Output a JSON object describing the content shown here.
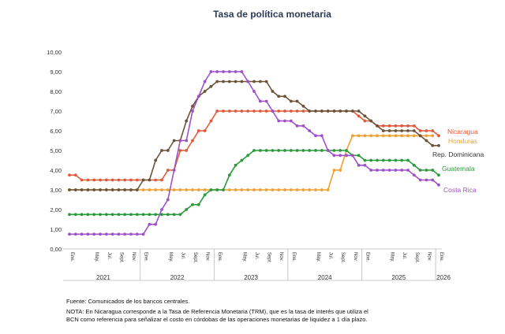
{
  "chart_data": {
    "type": "line",
    "title": "Tasa de política monetaria",
    "ylim": [
      0,
      10
    ],
    "yticks": [
      "0,00",
      "1,00",
      "2,00",
      "3,00",
      "4,00",
      "5,00",
      "6,00",
      "7,00",
      "8,00",
      "9,00",
      "10,00"
    ],
    "years": [
      "2021",
      "2022",
      "2023",
      "2024",
      "2025",
      "2026"
    ],
    "month_labels": [
      "Ene.",
      "May.",
      "Jul.",
      "Sept.",
      "Nov."
    ],
    "month_label_indices": [
      0,
      4,
      6,
      8,
      10
    ],
    "x_start": "2021-01",
    "n_months": 61,
    "grid": false,
    "series": [
      {
        "name": "Nicaragua",
        "color": "#e05a3a",
        "values": [
          3.75,
          3.75,
          3.5,
          3.5,
          3.5,
          3.5,
          3.5,
          3.5,
          3.5,
          3.5,
          3.5,
          3.5,
          3.5,
          3.5,
          3.5,
          3.5,
          4.0,
          4.0,
          5.0,
          5.0,
          5.5,
          6.0,
          6.0,
          6.5,
          7.0,
          7.0,
          7.0,
          7.0,
          7.0,
          7.0,
          7.0,
          7.0,
          7.0,
          7.0,
          7.0,
          7.0,
          7.0,
          7.0,
          7.0,
          7.0,
          7.0,
          7.0,
          7.0,
          7.0,
          7.0,
          7.0,
          7.0,
          6.75,
          6.5,
          6.5,
          6.25,
          6.25,
          6.25,
          6.25,
          6.25,
          6.25,
          6.25,
          6.0,
          6.0,
          6.0,
          5.75
        ]
      },
      {
        "name": "Honduras",
        "color": "#f0a030",
        "values": [
          3.0,
          3.0,
          3.0,
          3.0,
          3.0,
          3.0,
          3.0,
          3.0,
          3.0,
          3.0,
          3.0,
          3.0,
          3.0,
          3.0,
          3.0,
          3.0,
          3.0,
          3.0,
          3.0,
          3.0,
          3.0,
          3.0,
          3.0,
          3.0,
          3.0,
          3.0,
          3.0,
          3.0,
          3.0,
          3.0,
          3.0,
          3.0,
          3.0,
          3.0,
          3.0,
          3.0,
          3.0,
          3.0,
          3.0,
          3.0,
          3.0,
          3.0,
          3.0,
          4.0,
          4.0,
          5.0,
          5.75,
          5.75,
          5.75,
          5.75,
          5.75,
          5.75,
          5.75,
          5.75,
          5.75,
          5.75,
          5.75,
          5.75,
          5.75,
          5.75,
          null
        ]
      },
      {
        "name": "Rep. Dominicana",
        "color": "#6b5438",
        "values": [
          3.0,
          3.0,
          3.0,
          3.0,
          3.0,
          3.0,
          3.0,
          3.0,
          3.0,
          3.0,
          3.0,
          3.0,
          3.5,
          3.5,
          4.5,
          5.0,
          5.0,
          5.5,
          5.5,
          6.5,
          7.25,
          7.75,
          8.0,
          8.25,
          8.5,
          8.5,
          8.5,
          8.5,
          8.5,
          8.5,
          8.5,
          8.5,
          8.5,
          8.0,
          7.75,
          7.75,
          7.5,
          7.5,
          7.25,
          7.0,
          7.0,
          7.0,
          7.0,
          7.0,
          7.0,
          7.0,
          7.0,
          7.0,
          6.75,
          6.5,
          6.25,
          6.0,
          6.0,
          6.0,
          6.0,
          6.0,
          6.0,
          5.75,
          5.5,
          5.25,
          5.25
        ]
      },
      {
        "name": "Guatemala",
        "color": "#2a9a3a",
        "values": [
          1.75,
          1.75,
          1.75,
          1.75,
          1.75,
          1.75,
          1.75,
          1.75,
          1.75,
          1.75,
          1.75,
          1.75,
          1.75,
          1.75,
          1.75,
          1.75,
          1.75,
          1.75,
          1.75,
          2.0,
          2.25,
          2.25,
          2.75,
          3.0,
          3.0,
          3.0,
          3.75,
          4.25,
          4.5,
          4.75,
          5.0,
          5.0,
          5.0,
          5.0,
          5.0,
          5.0,
          5.0,
          5.0,
          5.0,
          5.0,
          5.0,
          5.0,
          5.0,
          5.0,
          5.0,
          5.0,
          4.75,
          4.75,
          4.5,
          4.5,
          4.5,
          4.5,
          4.5,
          4.5,
          4.5,
          4.5,
          4.25,
          4.0,
          4.0,
          4.0,
          3.75
        ]
      },
      {
        "name": "Costa Rica",
        "color": "#a050c8",
        "values": [
          0.75,
          0.75,
          0.75,
          0.75,
          0.75,
          0.75,
          0.75,
          0.75,
          0.75,
          0.75,
          0.75,
          0.75,
          0.75,
          1.25,
          1.25,
          2.0,
          2.5,
          4.0,
          5.5,
          5.5,
          7.0,
          7.75,
          8.5,
          9.0,
          9.0,
          9.0,
          9.0,
          9.0,
          9.0,
          8.5,
          8.0,
          7.5,
          7.5,
          7.0,
          6.5,
          6.5,
          6.5,
          6.25,
          6.25,
          6.0,
          5.75,
          5.75,
          5.0,
          4.75,
          4.75,
          4.75,
          4.75,
          4.25,
          4.25,
          4.0,
          4.0,
          4.0,
          4.0,
          4.0,
          4.0,
          4.0,
          3.75,
          3.5,
          3.5,
          3.5,
          3.25
        ]
      }
    ]
  },
  "notes": {
    "fuente": "Fuente: Comunicados de los bancos centrales.",
    "nota": "NOTA: En Nicaragua corresponde a la Tasa de Referencia Monetaria (TRM), que es la tasa de interés que utiliza el BCN como referencia para señalizar el costo en córdobas de las operaciones monetarias de liquidez a 1 día plazo."
  }
}
